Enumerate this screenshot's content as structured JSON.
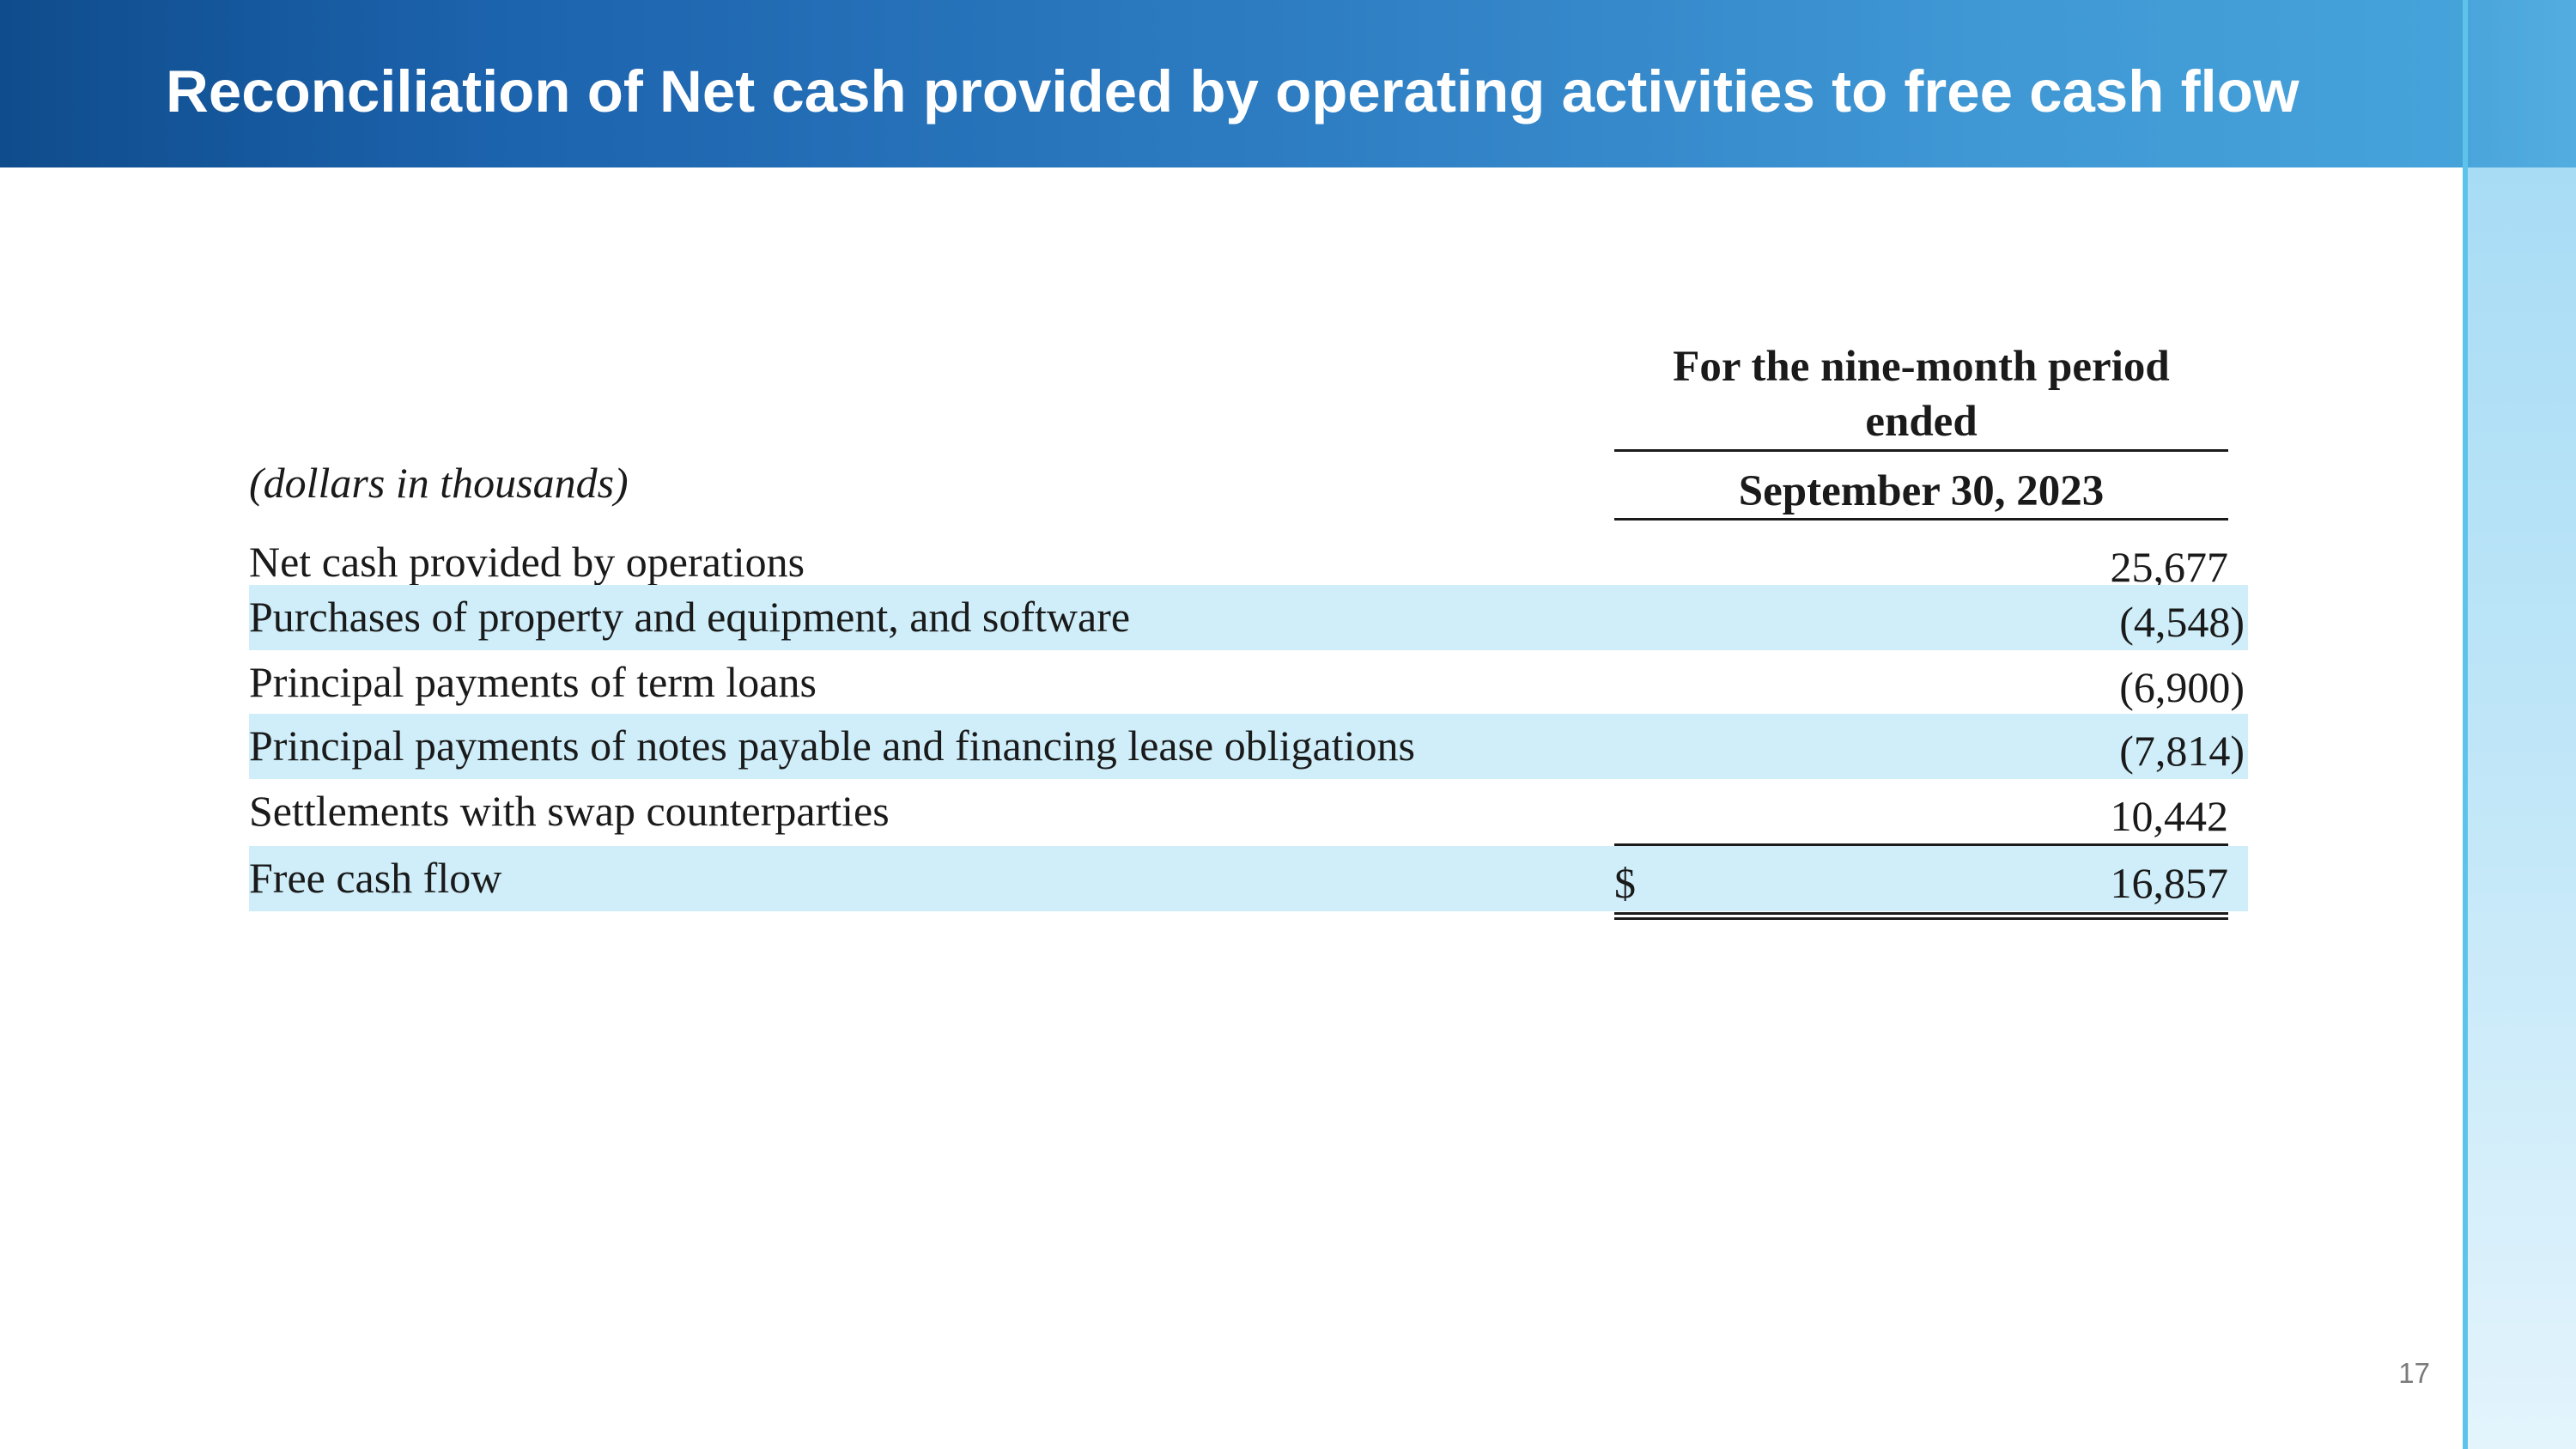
{
  "slide": {
    "title": "Reconciliation of Net cash provided by operating activities to free cash flow",
    "page_number": "17"
  },
  "table": {
    "units_label": "(dollars in thousands)",
    "column_header_line1": "For the nine-month period",
    "column_header_line2": "ended",
    "column_date": "September 30, 2023",
    "rows": [
      {
        "label": "Net cash provided by operations",
        "value": "25,677"
      },
      {
        "label": "Purchases of property and equipment, and software",
        "value": "(4,548)"
      },
      {
        "label": "Principal payments of term loans",
        "value": "(6,900)"
      },
      {
        "label": "Principal payments of notes payable and financing lease obligations",
        "value": "(7,814)"
      },
      {
        "label": "Settlements with swap counterparties",
        "value": "10,442"
      },
      {
        "label": "Free cash flow",
        "currency_symbol": "$",
        "value": "16,857"
      }
    ]
  },
  "colors": {
    "header_dark": "#0f4c8c",
    "header_light": "#46a3da",
    "row_shade": "#cfeef9",
    "rail_line": "#5ec3ea"
  }
}
